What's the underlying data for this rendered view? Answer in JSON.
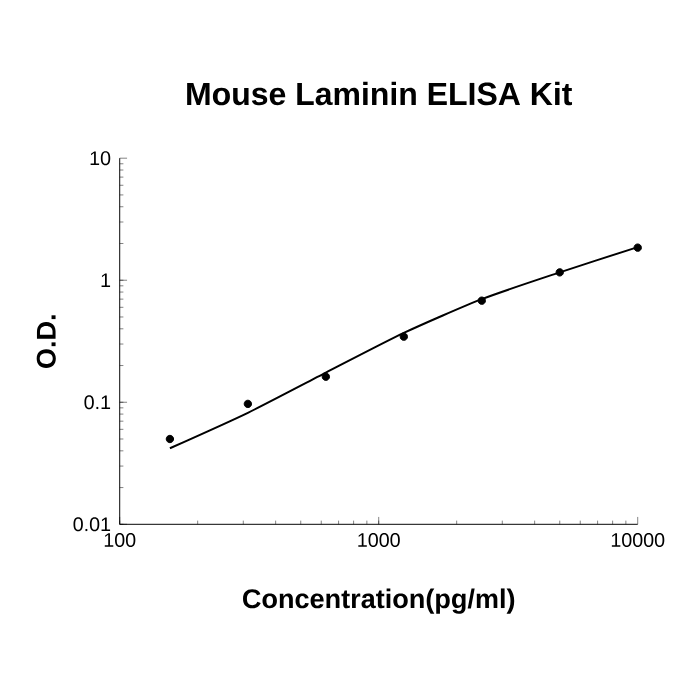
{
  "chart_data": {
    "type": "scatter",
    "title": "Mouse Laminin ELISA Kit",
    "xlabel": "Concentration(pg/ml)",
    "ylabel": "O.D.",
    "log": "xy",
    "grid": false,
    "xlim": [
      100,
      10000
    ],
    "xticks": [
      100,
      1000,
      10000
    ],
    "ylim": [
      0.01,
      10
    ],
    "yticks": [
      0.01,
      0.1,
      1,
      10
    ],
    "series": [
      {
        "color": "#000000",
        "marker": "circle",
        "x": [
          156.25,
          312.5,
          625,
          1250,
          2500,
          5000,
          10000
        ],
        "values": [
          0.05,
          0.097,
          0.162,
          0.345,
          0.68,
          1.16,
          1.85
        ]
      },
      {
        "type": "line",
        "color": "#000000",
        "marker": "none",
        "line_style": "solid",
        "x": [
          156.25,
          312.5,
          625,
          1250,
          2500,
          5000,
          10000
        ],
        "values": [
          0.042,
          0.082,
          0.175,
          0.37,
          0.7,
          1.16,
          1.87
        ]
      }
    ]
  }
}
